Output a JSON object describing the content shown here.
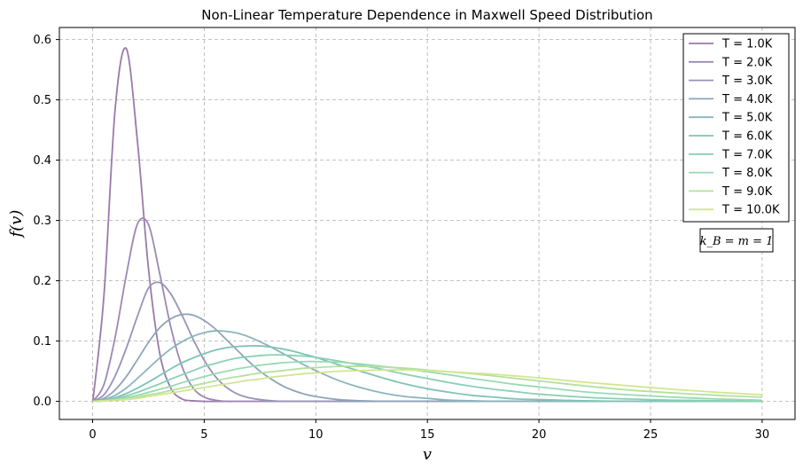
{
  "chart_data": {
    "type": "line",
    "title": "Non-Linear Temperature Dependence in Maxwell Speed Distribution",
    "xlabel": "v",
    "ylabel": "f(v)",
    "xlim": [
      -1.5,
      31.5
    ],
    "ylim": [
      -0.03,
      0.62
    ],
    "x_ticks": [
      0,
      5,
      10,
      15,
      20,
      25,
      30
    ],
    "x_tick_labels": [
      "0",
      "5",
      "10",
      "15",
      "20",
      "25",
      "30"
    ],
    "y_ticks": [
      0.0,
      0.1,
      0.2,
      0.3,
      0.4,
      0.5,
      0.6
    ],
    "y_tick_labels": [
      "0.0",
      "0.1",
      "0.2",
      "0.3",
      "0.4",
      "0.5",
      "0.6"
    ],
    "grid": true,
    "legend_position": "top-right",
    "x": [
      0,
      0.5,
      1,
      1.5,
      2,
      2.5,
      3,
      3.5,
      4,
      4.5,
      5,
      5.5,
      6,
      6.5,
      7,
      7.5,
      8,
      8.5,
      9,
      9.5,
      10,
      11,
      12,
      13,
      14,
      15,
      16,
      17,
      18,
      19,
      20,
      22,
      24,
      26,
      28,
      30
    ],
    "series": [
      {
        "name": "T = 1.0K",
        "color": "#9a7aaa",
        "values": [
          0,
          0.176,
          0.484,
          0.585,
          0.432,
          0.219,
          0.08,
          0.022,
          0.004,
          0.001,
          0,
          0,
          0,
          0,
          0,
          0,
          0,
          0,
          0,
          0,
          0,
          0,
          0,
          0,
          0,
          0,
          0,
          0,
          0,
          0,
          0,
          0,
          0,
          0,
          0,
          0
        ]
      },
      {
        "name": "T = 2.0K",
        "color": "#9c88b4",
        "values": [
          0,
          0.028,
          0.106,
          0.209,
          0.294,
          0.293,
          0.212,
          0.123,
          0.058,
          0.022,
          0.007,
          0.002,
          0,
          0,
          0,
          0,
          0,
          0,
          0,
          0,
          0,
          0,
          0,
          0,
          0,
          0,
          0,
          0,
          0,
          0,
          0,
          0,
          0,
          0,
          0,
          0
        ]
      },
      {
        "name": "T = 3.0K",
        "color": "#9694b8",
        "values": [
          0,
          0.011,
          0.042,
          0.088,
          0.141,
          0.188,
          0.197,
          0.178,
          0.143,
          0.103,
          0.068,
          0.041,
          0.023,
          0.012,
          0.006,
          0.003,
          0.001,
          0,
          0,
          0,
          0,
          0,
          0,
          0,
          0,
          0,
          0,
          0,
          0,
          0,
          0,
          0,
          0,
          0,
          0,
          0
        ]
      },
      {
        "name": "T = 4.0K",
        "color": "#8ea4b9",
        "values": [
          0,
          0.005,
          0.019,
          0.041,
          0.069,
          0.098,
          0.122,
          0.137,
          0.144,
          0.143,
          0.134,
          0.12,
          0.102,
          0.084,
          0.066,
          0.05,
          0.037,
          0.026,
          0.018,
          0.012,
          0.008,
          0.003,
          0.001,
          0,
          0,
          0,
          0,
          0,
          0,
          0,
          0,
          0,
          0,
          0,
          0,
          0
        ]
      },
      {
        "name": "T = 5.0K",
        "color": "#8cb4bc",
        "values": [
          0,
          0.003,
          0.01,
          0.022,
          0.038,
          0.055,
          0.072,
          0.087,
          0.099,
          0.108,
          0.114,
          0.117,
          0.116,
          0.113,
          0.107,
          0.099,
          0.09,
          0.08,
          0.07,
          0.06,
          0.051,
          0.035,
          0.023,
          0.014,
          0.008,
          0.005,
          0.002,
          0.001,
          0,
          0,
          0,
          0,
          0,
          0,
          0,
          0
        ]
      },
      {
        "name": "T = 6.0K",
        "color": "#7fc4b4",
        "values": [
          0,
          0.002,
          0.006,
          0.013,
          0.022,
          0.032,
          0.043,
          0.054,
          0.064,
          0.072,
          0.079,
          0.085,
          0.089,
          0.091,
          0.092,
          0.092,
          0.09,
          0.087,
          0.083,
          0.078,
          0.073,
          0.061,
          0.05,
          0.039,
          0.029,
          0.021,
          0.015,
          0.01,
          0.007,
          0.004,
          0.003,
          0.001,
          0,
          0,
          0,
          0
        ]
      },
      {
        "name": "T = 7.0K",
        "color": "#8ad0b4",
        "values": [
          0,
          0.001,
          0.004,
          0.009,
          0.015,
          0.022,
          0.029,
          0.037,
          0.044,
          0.051,
          0.058,
          0.063,
          0.068,
          0.072,
          0.074,
          0.076,
          0.077,
          0.077,
          0.076,
          0.075,
          0.073,
          0.067,
          0.06,
          0.053,
          0.045,
          0.038,
          0.031,
          0.025,
          0.02,
          0.016,
          0.012,
          0.007,
          0.004,
          0.002,
          0.001,
          0
        ]
      },
      {
        "name": "T = 8.0K",
        "color": "#98dab4",
        "values": [
          0,
          0.001,
          0.003,
          0.006,
          0.01,
          0.015,
          0.02,
          0.025,
          0.031,
          0.036,
          0.041,
          0.046,
          0.05,
          0.054,
          0.057,
          0.06,
          0.062,
          0.064,
          0.065,
          0.066,
          0.066,
          0.065,
          0.062,
          0.058,
          0.054,
          0.049,
          0.044,
          0.038,
          0.033,
          0.028,
          0.024,
          0.016,
          0.011,
          0.007,
          0.004,
          0.002
        ]
      },
      {
        "name": "T = 9.0K",
        "color": "#b4e09e",
        "values": [
          0,
          0.001,
          0.002,
          0.004,
          0.007,
          0.011,
          0.014,
          0.018,
          0.022,
          0.026,
          0.03,
          0.034,
          0.038,
          0.041,
          0.044,
          0.047,
          0.049,
          0.051,
          0.053,
          0.055,
          0.056,
          0.058,
          0.058,
          0.057,
          0.055,
          0.052,
          0.049,
          0.046,
          0.042,
          0.038,
          0.034,
          0.026,
          0.019,
          0.014,
          0.01,
          0.007
        ]
      },
      {
        "name": "T = 10.0K",
        "color": "#d2e690",
        "values": [
          0,
          0.001,
          0.002,
          0.003,
          0.005,
          0.008,
          0.011,
          0.014,
          0.017,
          0.02,
          0.023,
          0.026,
          0.029,
          0.032,
          0.035,
          0.037,
          0.04,
          0.042,
          0.044,
          0.046,
          0.047,
          0.05,
          0.051,
          0.052,
          0.052,
          0.051,
          0.049,
          0.047,
          0.045,
          0.042,
          0.039,
          0.032,
          0.026,
          0.02,
          0.015,
          0.011
        ]
      }
    ],
    "annotation": "k_B = m = 1"
  }
}
